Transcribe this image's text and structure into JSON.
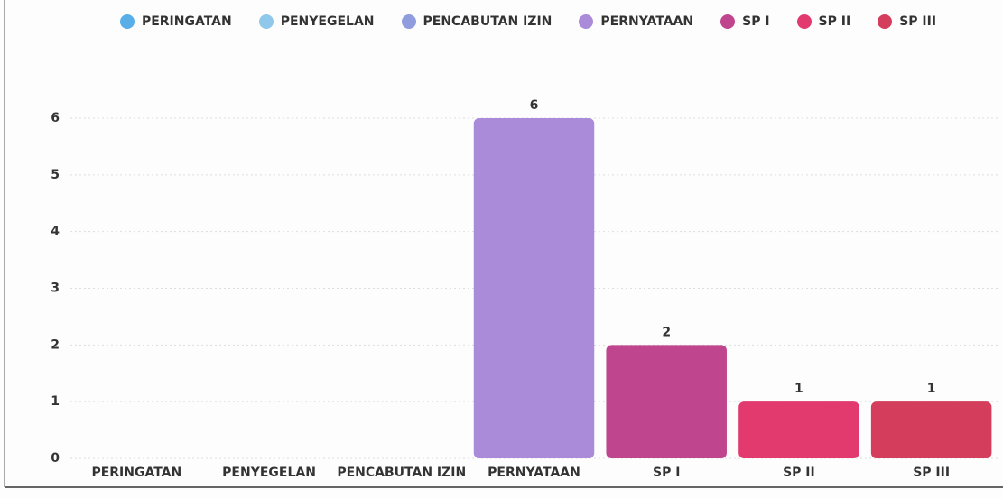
{
  "chart_data": {
    "type": "bar",
    "categories": [
      "PERINGATAN",
      "PENYEGELAN",
      "PENCABUTAN IZIN",
      "PERNYATAAN",
      "SP I",
      "SP II",
      "SP III"
    ],
    "values": [
      0,
      0,
      0,
      6,
      2,
      1,
      1
    ],
    "colors": [
      "#5aaee8",
      "#90c8ec",
      "#8f9ddf",
      "#a98bd9",
      "#c0458f",
      "#e23a6e",
      "#d43d5b"
    ],
    "ylim": [
      0,
      6
    ],
    "yticks": [
      0,
      1,
      2,
      3,
      4,
      5,
      6
    ],
    "grid": true
  }
}
